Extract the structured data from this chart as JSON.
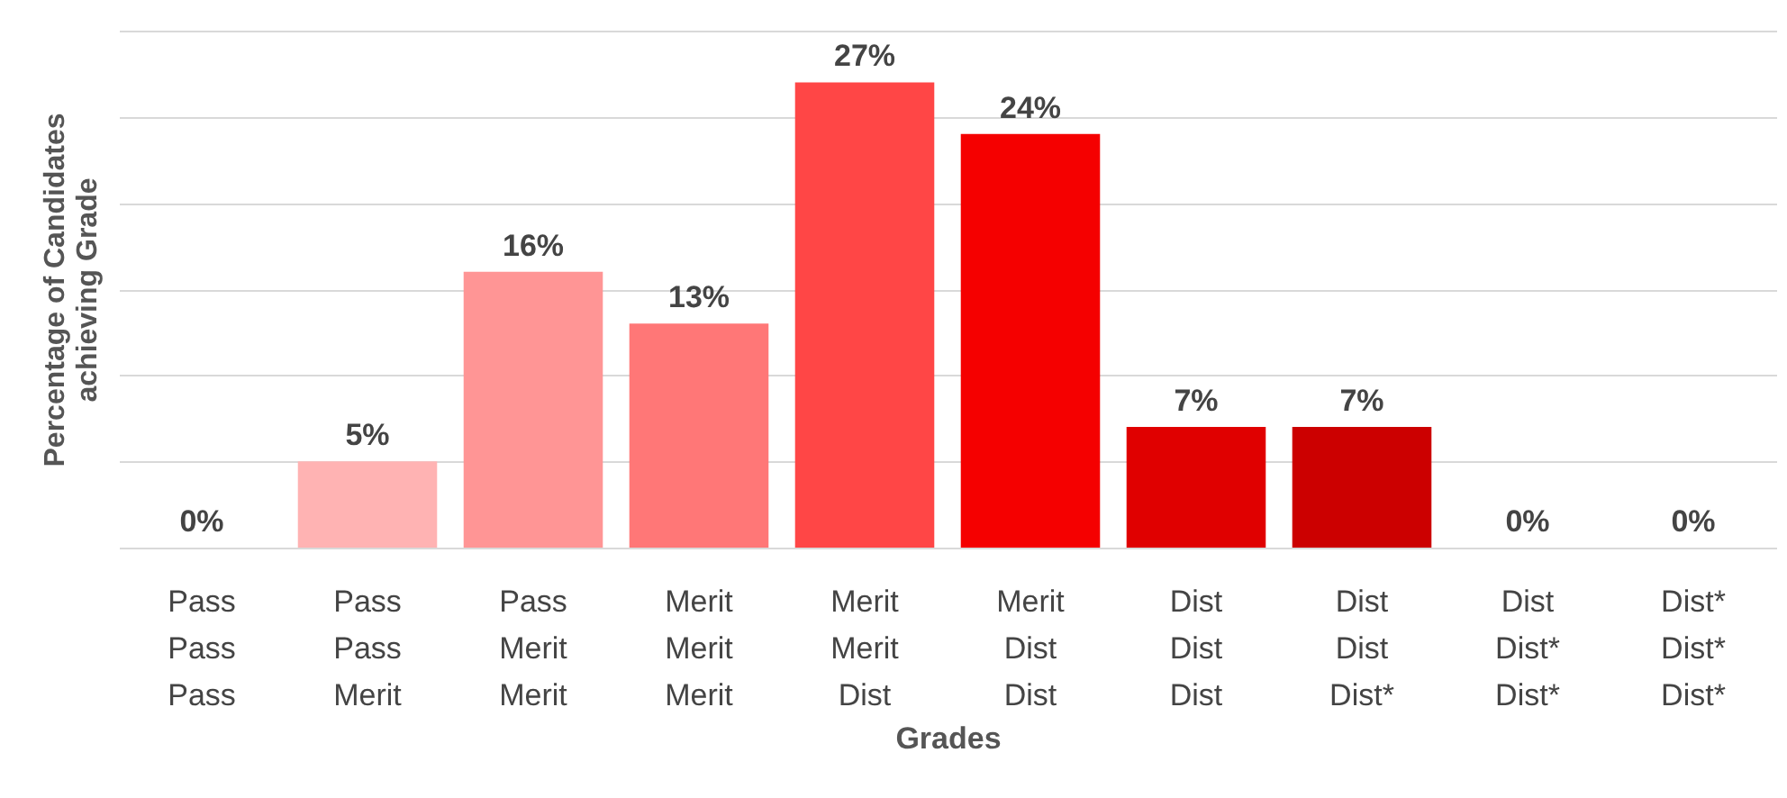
{
  "chart_data": {
    "type": "bar",
    "xlabel": "Grades",
    "ylabel": "Percentage of Candidates\nachieving Grade",
    "categories": [
      "Pass\nPass\nPass",
      "Pass\nPass\nMerit",
      "Pass\nMerit\nMerit",
      "Merit\nMerit\nMerit",
      "Merit\nMerit\nDist",
      "Merit\nDist\nDist",
      "Dist\nDist\nDist",
      "Dist\nDist\nDist*",
      "Dist\nDist*\nDist*",
      "Dist*\nDist*\nDist*"
    ],
    "values": [
      0,
      5,
      16,
      13,
      27,
      24,
      7,
      7,
      0,
      0
    ],
    "value_labels": [
      "0%",
      "5%",
      "16%",
      "13%",
      "27%",
      "24%",
      "7%",
      "7%",
      "0%",
      "0%"
    ],
    "colors": [
      "#ffd0d0",
      "#ffb3b3",
      "#ff9595",
      "#ff7777",
      "#ff4646",
      "#f50000",
      "#e00000",
      "#cc0000",
      "#b80000",
      "#a00000"
    ],
    "ylim": [
      0,
      30
    ],
    "yticks": [
      0,
      5,
      10,
      15,
      20,
      25,
      30
    ],
    "grid": "y",
    "tick_labels": "x"
  }
}
